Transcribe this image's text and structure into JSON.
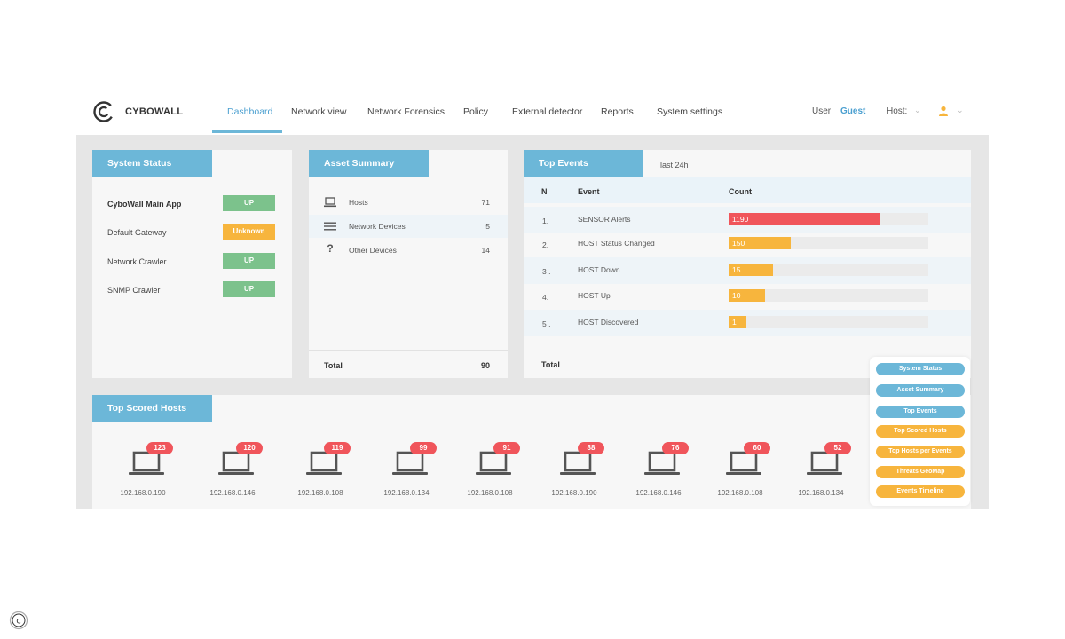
{
  "brand": {
    "name": "CYBOWALL"
  },
  "nav": [
    {
      "label": "Dashboard",
      "active": true
    },
    {
      "label": "Network view"
    },
    {
      "label": "Network Forensics"
    },
    {
      "label": "Policy"
    },
    {
      "label": "External detector"
    },
    {
      "label": "Reports"
    },
    {
      "label": "System settings"
    }
  ],
  "user": {
    "label": "User:",
    "name": "Guest",
    "host_label": "Host:"
  },
  "system_status": {
    "title": "System Status",
    "rows": [
      {
        "name": "CyboWall Main App",
        "status": "UP"
      },
      {
        "name": "Default Gateway",
        "status": "Unknown"
      },
      {
        "name": "Network Crawler",
        "status": "UP"
      },
      {
        "name": "SNMP Crawler",
        "status": "UP"
      }
    ]
  },
  "asset_summary": {
    "title": "Asset Summary",
    "rows": [
      {
        "label": "Hosts",
        "count": "71",
        "icon": "laptop-icon"
      },
      {
        "label": "Network Devices",
        "count": "5",
        "icon": "menu-icon"
      },
      {
        "label": "Other Devices",
        "count": "14",
        "icon": "question-icon"
      }
    ],
    "total_label": "Total",
    "total": "90"
  },
  "top_events": {
    "title": "Top Events",
    "range": "last 24h",
    "headers": {
      "n": "N",
      "event": "Event",
      "count": "Count"
    },
    "rows": [
      {
        "n": "1.",
        "event": "SENSOR Alerts",
        "count": "1190",
        "fill": 0.76,
        "color": "#f0555b"
      },
      {
        "n": "2.",
        "event": "HOST Status Changed",
        "count": "150",
        "fill": 0.31,
        "color": "#f7b53d"
      },
      {
        "n": "3 .",
        "event": "HOST Down",
        "count": "15",
        "fill": 0.22,
        "color": "#f7b53d"
      },
      {
        "n": "4.",
        "event": "HOST Up",
        "count": "10",
        "fill": 0.18,
        "color": "#f7b53d"
      },
      {
        "n": "5 .",
        "event": "HOST Discovered",
        "count": "1",
        "fill": 0.09,
        "color": "#f7b53d"
      }
    ],
    "total_label": "Total"
  },
  "top_scored_hosts": {
    "title": "Top Scored Hosts",
    "hosts": [
      {
        "score": "123",
        "ip": "192.168.0.190"
      },
      {
        "score": "120",
        "ip": "192.168.0.146"
      },
      {
        "score": "119",
        "ip": "192.168.0.108"
      },
      {
        "score": "99",
        "ip": "192.168.0.134"
      },
      {
        "score": "91",
        "ip": "192.168.0.108"
      },
      {
        "score": "88",
        "ip": "192.168.0.190"
      },
      {
        "score": "76",
        "ip": "192.168.0.146"
      },
      {
        "score": "60",
        "ip": "192.168.0.108"
      },
      {
        "score": "52",
        "ip": "192.168.0.134"
      }
    ]
  },
  "widget_menu": [
    {
      "label": "System Status",
      "color": "blue"
    },
    {
      "label": "Asset Summary",
      "color": "blue"
    },
    {
      "label": "Top Events",
      "color": "blue"
    },
    {
      "label": "Top Scored Hosts",
      "color": "orange"
    },
    {
      "label": "Top Hosts per Events",
      "color": "orange"
    },
    {
      "label": "Threats GeoMap",
      "color": "orange"
    },
    {
      "label": "Events Timeline",
      "color": "orange"
    }
  ],
  "colors": {
    "accent": "#6cb7d8",
    "up": "#7cc28c",
    "unknown": "#f7b53d",
    "alert": "#f0555b"
  }
}
